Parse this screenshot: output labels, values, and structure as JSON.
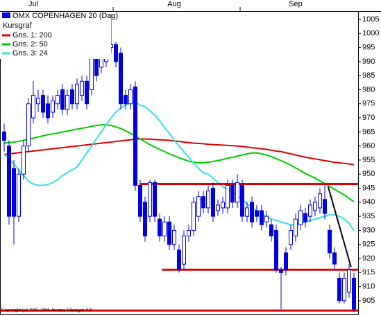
{
  "chart_data": {
    "type": "candlestick",
    "title": "OMX COPENHAGEN 20 (Dag)",
    "candle_label": "Kursgraf",
    "copyright": "Copyright (c) 1995-2006 Avanza Vikingen AB",
    "categories": [
      null,
      null,
      null,
      null,
      null,
      null,
      "Jul",
      null,
      null,
      null,
      null,
      null,
      null,
      null,
      null,
      null,
      null,
      null,
      null,
      null,
      null,
      null,
      null,
      null,
      null,
      null,
      null,
      null,
      null,
      null,
      null,
      null,
      null,
      null,
      null,
      "Aug",
      null,
      null,
      null,
      null,
      null,
      null,
      null,
      null,
      null,
      null,
      null,
      null,
      null,
      null,
      null,
      null,
      null,
      null,
      null,
      null,
      null,
      null,
      null,
      null,
      "Sep",
      null,
      null,
      null,
      null,
      null,
      null,
      null,
      null,
      null,
      null,
      null,
      null
    ],
    "open": [
      965,
      960,
      952,
      935,
      950,
      960,
      970,
      975,
      978,
      975,
      972,
      975,
      980,
      973,
      980,
      975,
      978,
      983,
      980,
      995,
      988,
      990,
      995,
      996,
      993,
      978,
      975,
      981,
      946,
      940,
      935,
      947,
      934,
      928,
      933,
      925,
      923,
      918,
      928,
      930,
      935,
      942,
      938,
      945,
      937,
      938,
      938,
      946,
      940,
      946,
      935,
      940,
      937,
      937,
      933,
      932,
      930,
      916,
      922,
      925,
      928,
      932,
      936,
      935,
      937,
      938,
      941,
      930,
      922,
      913,
      905,
      908,
      913
    ],
    "high": [
      968,
      962,
      955,
      952,
      962,
      977,
      983,
      980,
      980,
      978,
      978,
      980,
      982,
      980,
      982,
      984,
      985,
      985,
      995,
      998,
      1003,
      1005,
      1007,
      997,
      995,
      980,
      982,
      983,
      948,
      942,
      948,
      948,
      936,
      935,
      935,
      932,
      925,
      930,
      932,
      942,
      944,
      944,
      946,
      947,
      941,
      942,
      948,
      948,
      950,
      948,
      940,
      942,
      939,
      939,
      937,
      934,
      932,
      917,
      924,
      932,
      936,
      939,
      938,
      941,
      942,
      945,
      946,
      932,
      924,
      915,
      915,
      918,
      915
    ],
    "low": [
      958,
      932,
      925,
      933,
      948,
      958,
      968,
      972,
      970,
      968,
      970,
      973,
      971,
      971,
      973,
      973,
      976,
      973,
      978,
      983,
      986,
      988,
      993,
      988,
      973,
      973,
      973,
      944,
      933,
      926,
      933,
      933,
      926,
      926,
      923,
      923,
      915,
      916,
      926,
      928,
      933,
      936,
      936,
      933,
      935,
      936,
      936,
      938,
      938,
      933,
      933,
      931,
      933,
      930,
      931,
      926,
      915,
      902,
      914,
      923,
      926,
      930,
      931,
      933,
      935,
      936,
      934,
      920,
      916,
      904,
      904,
      906,
      901
    ],
    "close": [
      962,
      935,
      935,
      950,
      960,
      975,
      978,
      977,
      972,
      970,
      976,
      978,
      973,
      978,
      975,
      982,
      983,
      975,
      993,
      985,
      995,
      997,
      996,
      990,
      975,
      975,
      980,
      946,
      935,
      928,
      947,
      935,
      928,
      933,
      925,
      930,
      916,
      928,
      930,
      940,
      942,
      938,
      944,
      935,
      939,
      940,
      946,
      940,
      947,
      935,
      938,
      933,
      935,
      932,
      935,
      928,
      916,
      915,
      916,
      930,
      934,
      937,
      933,
      939,
      940,
      943,
      936,
      922,
      918,
      905,
      913,
      916,
      902
    ],
    "up_color": "#ffffff",
    "down_color": "#0000e0",
    "candle_edge": "#0000e0",
    "series": [
      {
        "name": "Gns. 1: 200",
        "color": "#e00000",
        "values": [
          957,
          957.2,
          957.4,
          957.6,
          957.8,
          958,
          958.2,
          958.4,
          958.6,
          958.8,
          959,
          959.2,
          959.4,
          959.6,
          959.8,
          960,
          960.2,
          960.4,
          960.6,
          960.8,
          961,
          961.2,
          961.4,
          961.6,
          961.8,
          962,
          962.2,
          962.4,
          962.5,
          962.5,
          962.4,
          962.3,
          962.2,
          962.1,
          962,
          961.8,
          961.6,
          961.4,
          961.2,
          961,
          960.9,
          960.8,
          960.6,
          960.5,
          960.4,
          960.3,
          960.2,
          960.1,
          960,
          959.8,
          959.6,
          959.4,
          959.2,
          959,
          958.8,
          958.5,
          958.2,
          958,
          957.6,
          957.2,
          956.8,
          956.4,
          956,
          955.7,
          955.4,
          955.1,
          954.8,
          954.5,
          954.2,
          954,
          953.8,
          953.6,
          953.4
        ]
      },
      {
        "name": "Gns. 2: 50",
        "color": "#00cc00",
        "values": [
          961,
          961.2,
          961.4,
          961.6,
          962,
          962.4,
          962.8,
          963.2,
          963.6,
          964,
          964.3,
          964.6,
          965,
          965.3,
          965.6,
          966,
          966.3,
          966.6,
          967,
          967.3,
          967.5,
          967.5,
          967.3,
          966.8,
          966.2,
          965.4,
          964.5,
          963.5,
          962.5,
          961.5,
          960.5,
          959.6,
          958.8,
          958,
          957.2,
          956.5,
          955.8,
          955.2,
          954.6,
          954.2,
          954,
          954,
          954.2,
          954.5,
          954.8,
          955.2,
          955.6,
          956,
          956.4,
          956.8,
          957.2,
          957.5,
          957.5,
          957.2,
          956.8,
          956.2,
          955.5,
          954.8,
          954,
          953.2,
          952.2,
          951.2,
          950.2,
          949.4,
          948.6,
          947.6,
          946.6,
          945.6,
          944.6,
          943.6,
          942.6,
          941.4,
          940.2
        ]
      },
      {
        "name": "Gns. 3: 24",
        "color": "#33e0e8",
        "values": [
          957,
          955.5,
          953.5,
          951.5,
          949.5,
          947.5,
          946.5,
          946,
          946,
          946.3,
          947,
          948,
          949.5,
          950.5,
          951.5,
          952.5,
          955,
          957.5,
          960,
          962.5,
          965,
          967.5,
          970,
          972,
          973.5,
          974.5,
          975.3,
          975.5,
          974.5,
          974,
          972.5,
          971,
          969,
          966.5,
          964.5,
          962,
          960,
          958,
          956,
          954,
          952,
          950.5,
          950,
          948.5,
          947,
          945.5,
          944.5,
          943.5,
          942.5,
          941,
          939.5,
          938,
          937,
          936,
          935,
          934,
          933.5,
          933,
          932.5,
          932,
          932,
          932.5,
          933,
          933.5,
          934,
          934.5,
          935,
          935.5,
          935.5,
          935,
          934,
          932.5,
          930
        ]
      }
    ],
    "levels": [
      {
        "value": 946.5,
        "color": "#e00000"
      },
      {
        "value": 916,
        "color": "#e00000"
      },
      {
        "value": 901.5,
        "color": "#e00000"
      }
    ],
    "trendline": {
      "values": [
        945.5,
        917
      ],
      "color": "#000000"
    },
    "ylim": [
      900.3,
      1007.7
    ],
    "yticks": [
      905,
      910,
      915,
      920,
      925,
      930,
      935,
      940,
      945,
      950,
      955,
      960,
      965,
      970,
      975,
      980,
      985,
      990,
      995,
      1000,
      1005
    ]
  }
}
